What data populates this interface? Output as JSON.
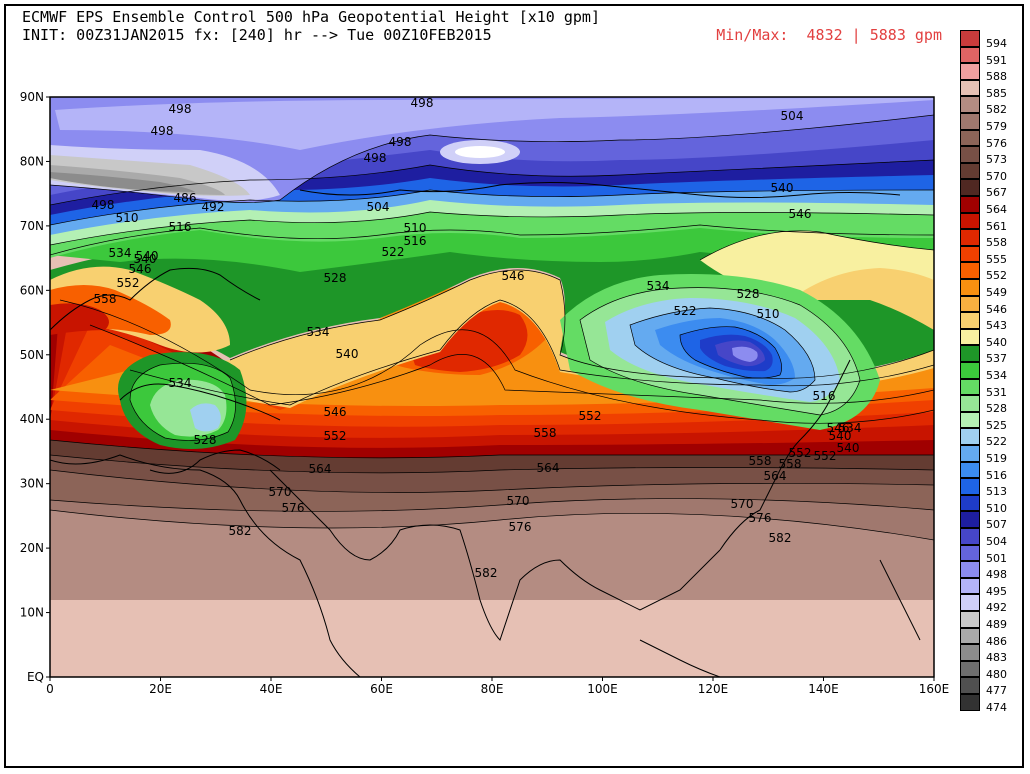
{
  "header": {
    "title": "ECMWF EPS Ensemble Control 500 hPa Geopotential Height [x10 gpm]",
    "init": "INIT: 00Z31JAN2015 fx: [240] hr --> Tue 00Z10FEB2015",
    "minmax": "Min/Max:  4832 | 5883 gpm"
  },
  "axes": {
    "lat_labels": [
      "90N",
      "80N",
      "70N",
      "60N",
      "50N",
      "40N",
      "30N",
      "20N",
      "10N",
      "EQ"
    ],
    "lon_labels": [
      "0",
      "20E",
      "40E",
      "60E",
      "80E",
      "100E",
      "120E",
      "140E",
      "160E"
    ],
    "lat_range": [
      0,
      90
    ],
    "lon_range": [
      0,
      160
    ]
  },
  "legend": {
    "levels": [
      "594",
      "591",
      "588",
      "585",
      "582",
      "579",
      "576",
      "573",
      "570",
      "567",
      "564",
      "561",
      "558",
      "555",
      "552",
      "549",
      "546",
      "543",
      "540",
      "537",
      "534",
      "531",
      "528",
      "525",
      "522",
      "519",
      "516",
      "513",
      "510",
      "507",
      "504",
      "501",
      "498",
      "495",
      "492",
      "489",
      "486",
      "483",
      "480",
      "477",
      "474"
    ],
    "colors": [
      "#c83c3c",
      "#e06464",
      "#f0a0a0",
      "#e6c0b4",
      "#b48c82",
      "#a0786e",
      "#8c6458",
      "#785046",
      "#643c32",
      "#502822",
      "#a00000",
      "#c81400",
      "#e02800",
      "#f04000",
      "#f86000",
      "#f89010",
      "#f8b040",
      "#f8d070",
      "#f8f0a0",
      "#1e9628",
      "#3cc83c",
      "#64dc64",
      "#96e696",
      "#b4f0b4",
      "#a0d0f0",
      "#64aaf0",
      "#3c8cf0",
      "#1e64e6",
      "#1e3cc8",
      "#1e1ea0",
      "#4646c8",
      "#6464dc",
      "#8c8cf0",
      "#b4b4f8",
      "#d0d0f8",
      "#c8c8c8",
      "#aaaaaa",
      "#8c8c8c",
      "#6e6e6e",
      "#505050",
      "#323232"
    ]
  },
  "contour_labels": [
    "498",
    "498",
    "498",
    "504",
    "498",
    "498",
    "486",
    "492",
    "498",
    "510",
    "516",
    "504",
    "510",
    "516",
    "522",
    "534",
    "540",
    "540",
    "546",
    "552",
    "558",
    "528",
    "546",
    "534",
    "540",
    "528",
    "534",
    "522",
    "510",
    "546",
    "552",
    "540",
    "528",
    "534",
    "540",
    "546",
    "552",
    "558",
    "564",
    "552",
    "558",
    "564",
    "570",
    "576",
    "570",
    "576",
    "570",
    "576",
    "582",
    "582",
    "582",
    "516",
    "534",
    "540",
    "546",
    "552",
    "558",
    "564"
  ]
}
